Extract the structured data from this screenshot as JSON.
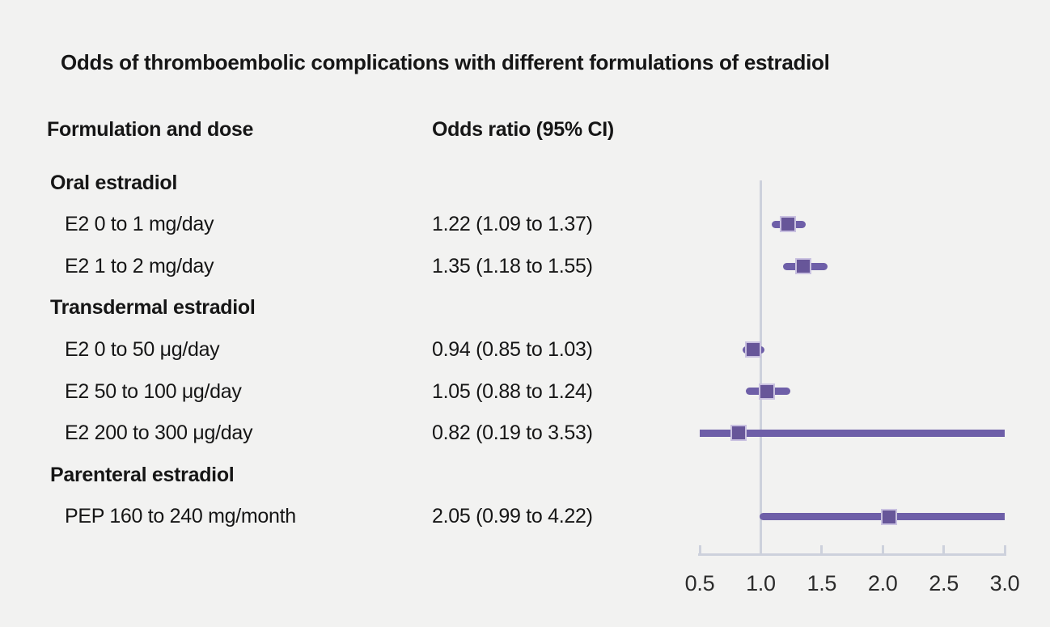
{
  "title": "Odds of thromboembolic complications with different formulations of estradiol",
  "columns": {
    "formulation": "Formulation and dose",
    "odds_ratio": "Odds ratio (95% CI)"
  },
  "chart_data": {
    "type": "forest",
    "title": "Odds of thromboembolic complications with different formulations of estradiol",
    "xlim": [
      0.5,
      3.0
    ],
    "x_ticks": [
      0.5,
      1.0,
      1.5,
      2.0,
      2.5,
      3.0
    ],
    "reference_line": 1.0,
    "grid": "off",
    "rows": [
      {
        "kind": "group",
        "label": "Oral estradiol"
      },
      {
        "kind": "item",
        "label": "E2 0 to 1 mg/day",
        "or_text": "1.22 (1.09 to 1.37)",
        "or": 1.22,
        "ci_low": 1.09,
        "ci_high": 1.37
      },
      {
        "kind": "item",
        "label": "E2 1 to 2 mg/day",
        "or_text": "1.35 (1.18 to 1.55)",
        "or": 1.35,
        "ci_low": 1.18,
        "ci_high": 1.55
      },
      {
        "kind": "group",
        "label": "Transdermal estradiol"
      },
      {
        "kind": "item",
        "label": "E2 0 to 50 μg/day",
        "or_text": "0.94 (0.85 to 1.03)",
        "or": 0.94,
        "ci_low": 0.85,
        "ci_high": 1.03
      },
      {
        "kind": "item",
        "label": "E2 50 to 100 μg/day",
        "or_text": "1.05 (0.88 to 1.24)",
        "or": 1.05,
        "ci_low": 0.88,
        "ci_high": 1.24
      },
      {
        "kind": "item",
        "label": "E2 200 to 300 μg/day",
        "or_text": "0.82 (0.19 to 3.53)",
        "or": 0.82,
        "ci_low": 0.19,
        "ci_high": 3.53
      },
      {
        "kind": "group",
        "label": "Parenteral estradiol"
      },
      {
        "kind": "item",
        "label": "PEP 160 to 240 mg/month",
        "or_text": "2.05 (0.99 to 4.22)",
        "or": 2.05,
        "ci_low": 0.99,
        "ci_high": 4.22
      }
    ],
    "colors": {
      "ci_line": "#6e5fa8",
      "marker": "#675699",
      "marker_edge": "#c9c1e0",
      "axis": "#cdd1dc",
      "background": "#f2f2f1",
      "text": "#161616"
    }
  }
}
